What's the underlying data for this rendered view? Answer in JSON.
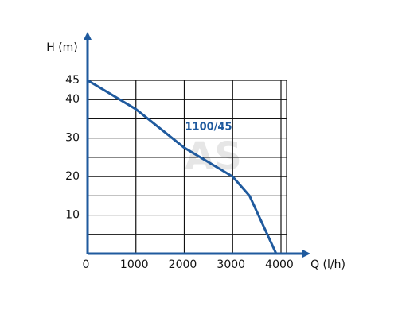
{
  "chart_data": {
    "type": "line",
    "x_label": "Q (l/h)",
    "y_label": "H (m)",
    "x": [
      0,
      1000,
      2000,
      3000,
      3350,
      3900
    ],
    "series": [
      {
        "name": "1100/45",
        "color": "#1f5a9e",
        "values": [
          45,
          37.5,
          27.5,
          20,
          15,
          0
        ]
      }
    ],
    "xlim": [
      0,
      4000
    ],
    "ylim": [
      0,
      45
    ],
    "xticks": [
      0,
      1000,
      2000,
      3000,
      4000
    ],
    "yticks": [
      10,
      20,
      30,
      40,
      45
    ],
    "y_minor_grid": [
      5,
      15,
      25,
      35
    ],
    "grid": true,
    "watermark": "AS"
  }
}
